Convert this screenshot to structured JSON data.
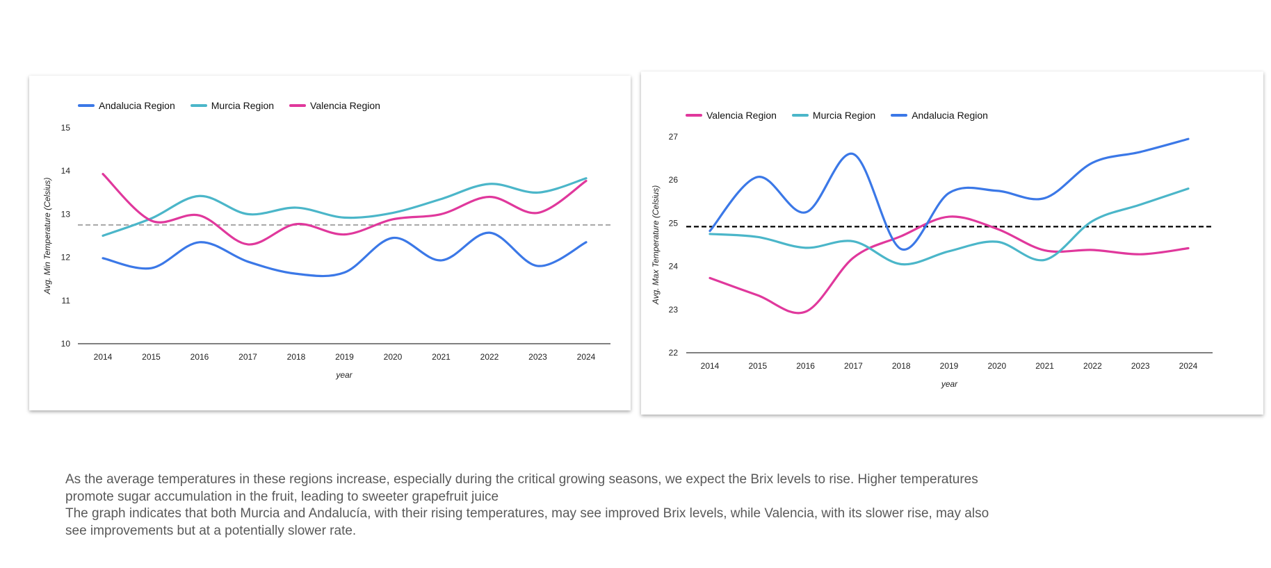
{
  "chart_data": [
    {
      "type": "line",
      "xlabel": "year",
      "ylabel": "Avg. Min Temperature (Celsius)",
      "ylim": [
        10,
        15
      ],
      "yticks": [
        10,
        11,
        12,
        13,
        14,
        15
      ],
      "x": [
        "2014",
        "2015",
        "2016",
        "2017",
        "2018",
        "2019",
        "2020",
        "2021",
        "2022",
        "2023",
        "2024"
      ],
      "legend_position": "top-left",
      "grid": false,
      "reference_line": {
        "y": 12.75,
        "style": "dashed",
        "color": "#aaaaaa"
      },
      "series": [
        {
          "name": "Andalucia Region",
          "color": "#3b78e7",
          "values": [
            11.98,
            11.75,
            12.35,
            11.9,
            11.62,
            11.65,
            12.45,
            11.93,
            12.57,
            11.8,
            12.35
          ]
        },
        {
          "name": "Murcia Region",
          "color": "#4bb6c9",
          "values": [
            12.5,
            12.9,
            13.42,
            13.0,
            13.15,
            12.92,
            13.03,
            13.35,
            13.7,
            13.5,
            13.83
          ]
        },
        {
          "name": "Valencia Region",
          "color": "#e0389c",
          "values": [
            13.93,
            12.85,
            12.97,
            12.3,
            12.77,
            12.53,
            12.88,
            13.0,
            13.4,
            13.03,
            13.77
          ]
        }
      ]
    },
    {
      "type": "line",
      "xlabel": "year",
      "ylabel": "Avg. Max Temperature (Celsius)",
      "ylim": [
        22,
        27
      ],
      "yticks": [
        22,
        23,
        24,
        25,
        26,
        27
      ],
      "x": [
        "2014",
        "2015",
        "2016",
        "2017",
        "2018",
        "2019",
        "2020",
        "2021",
        "2022",
        "2023",
        "2024"
      ],
      "legend_position": "top-left",
      "grid": false,
      "reference_line": {
        "y": 24.92,
        "style": "dashed",
        "color": "#000000"
      },
      "series": [
        {
          "name": "Valencia Region",
          "color": "#e0389c",
          "values": [
            23.73,
            23.33,
            22.95,
            24.2,
            24.7,
            25.15,
            24.87,
            24.37,
            24.38,
            24.28,
            24.42
          ]
        },
        {
          "name": "Murcia Region",
          "color": "#4bb6c9",
          "values": [
            24.75,
            24.68,
            24.43,
            24.58,
            24.05,
            24.35,
            24.57,
            24.15,
            25.05,
            25.43,
            25.8
          ]
        },
        {
          "name": "Andalucia Region",
          "color": "#3b78e7",
          "values": [
            24.82,
            26.07,
            25.25,
            26.6,
            24.4,
            25.7,
            25.75,
            25.58,
            26.4,
            26.65,
            26.95
          ]
        }
      ]
    }
  ],
  "caption": {
    "paragraph_1": "As the average temperatures in these regions increase, especially during the critical growing seasons, we  expect the Brix levels to rise. Higher temperatures promote sugar accumulation in the fruit, leading to sweeter grapefruit juice",
    "paragraph_2": "The graph indicates that both Murcia and Andalucía, with their rising temperatures, may see improved Brix levels, while Valencia, with its slower rise, may also see improvements but at a potentially slower rate."
  }
}
